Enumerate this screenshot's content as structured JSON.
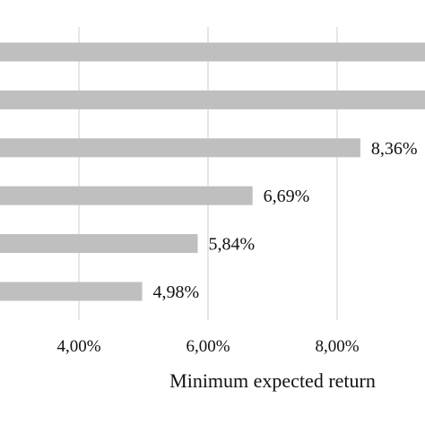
{
  "chart_data": {
    "type": "bar",
    "orientation": "horizontal",
    "title": "",
    "xlabel": "Minimum expected return",
    "ylabel": "",
    "x_tick_values": [
      4,
      6,
      8
    ],
    "x_tick_labels": [
      "4,00%",
      "6,00%",
      "8,00%"
    ],
    "grid": "vertical",
    "colors": {
      "bar": "#bfbfbf",
      "grid": "#d9d9d9",
      "text": "#111111"
    },
    "bars": [
      {
        "value": 10.5,
        "label": ""
      },
      {
        "value": 10.5,
        "label": ""
      },
      {
        "value": 8.36,
        "label": "8,36%"
      },
      {
        "value": 6.69,
        "label": "6,69%"
      },
      {
        "value": 5.84,
        "label": "5,84%"
      },
      {
        "value": 4.98,
        "label": "4,98%"
      }
    ]
  }
}
